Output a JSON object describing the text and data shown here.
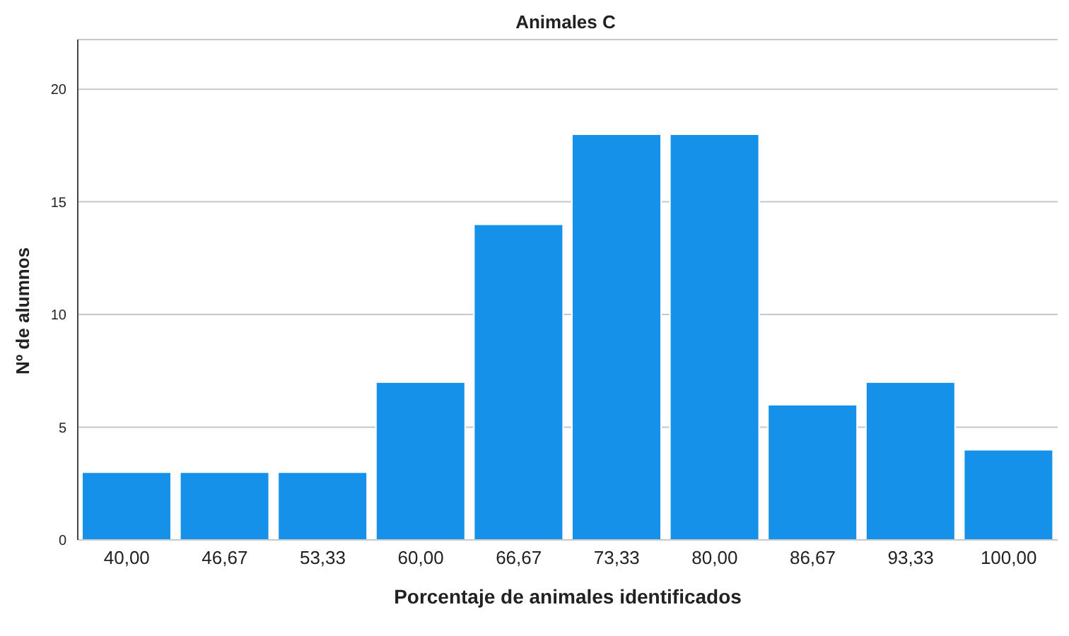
{
  "chart_data": {
    "type": "bar",
    "title": "Animales C",
    "xlabel": "Porcentaje de animales identificados",
    "ylabel": "Nº de alumnos",
    "categories": [
      "40,00",
      "46,67",
      "53,33",
      "60,00",
      "66,67",
      "73,33",
      "80,00",
      "86,67",
      "93,33",
      "100,00"
    ],
    "values": [
      3,
      3,
      3,
      7,
      14,
      18,
      18,
      6,
      7,
      4
    ],
    "color": "#1591ea",
    "ylim": [
      0,
      22.2
    ],
    "yticks": [
      0,
      5,
      10,
      15,
      20
    ],
    "grid": "y"
  }
}
